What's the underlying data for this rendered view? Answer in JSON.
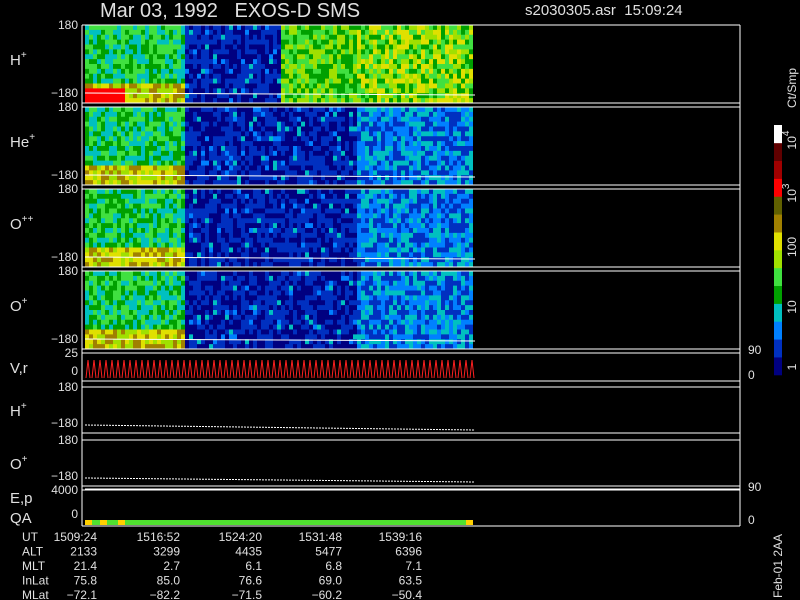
{
  "header": {
    "title": "Mar 03, 1992   EXOS-D SMS",
    "file": "s2030305.asr  15:09:24"
  },
  "panels": [
    {
      "label": "H",
      "sup": "+",
      "top": "180",
      "bottom": "−180"
    },
    {
      "label": "He",
      "sup": "+",
      "top": "180",
      "bottom": "−180"
    },
    {
      "label": "O",
      "sup": "++",
      "top": "180",
      "bottom": "−180"
    },
    {
      "label": "O",
      "sup": "+",
      "top": "180",
      "bottom": "−180"
    },
    {
      "label": "V,r",
      "top": "25",
      "bottom": "0",
      "right_top": "90",
      "right_bottom": "0"
    },
    {
      "label": "H",
      "sup": "+",
      "top": "180",
      "bottom": "−180"
    },
    {
      "label": "O",
      "sup": "+",
      "top": "180",
      "bottom": "−180"
    },
    {
      "label": "E,p",
      "label2": "QA",
      "top": "4000",
      "bottom": "0",
      "right_top": "90",
      "right_bottom": "0"
    }
  ],
  "colorbar": {
    "unit": "Ct/Smp",
    "labels": [
      {
        "base": "10",
        "sup": "4"
      },
      {
        "base": "10",
        "sup": "3"
      },
      {
        "base": "100"
      },
      {
        "base": "10"
      },
      {
        "base": "1"
      }
    ]
  },
  "footer": {
    "rows": [
      {
        "label": "UT",
        "values": [
          "1509:24",
          "1516:52",
          "1524:20",
          "1531:48",
          "1539:16"
        ]
      },
      {
        "label": "ALT",
        "values": [
          "2133",
          "3299",
          "4435",
          "5477",
          "6396"
        ]
      },
      {
        "label": "MLT",
        "values": [
          "21.4",
          "2.7",
          "6.1",
          "6.8",
          "7.1"
        ]
      },
      {
        "label": "InLat",
        "values": [
          "75.8",
          "85.0",
          "76.6",
          "69.0",
          "63.5"
        ]
      },
      {
        "label": "MLat",
        "values": [
          "−72.1",
          "−82.2",
          "−71.5",
          "−60.2",
          "−50.4"
        ]
      }
    ],
    "stamp": "Feb-01 2AA"
  }
}
